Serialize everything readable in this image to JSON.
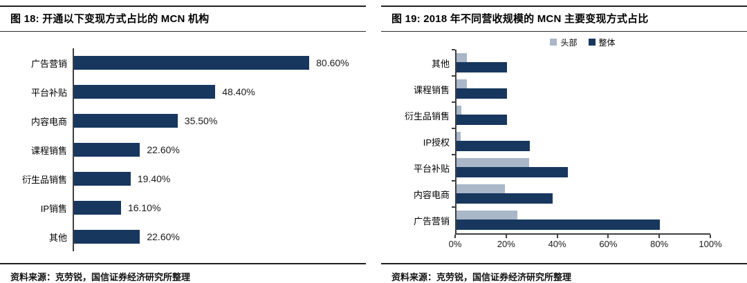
{
  "figure18": {
    "title": "图 18: 开通以下变现方式占比的 MCN 机构",
    "source": "资料来源：克劳锐，国信证券经济研究所整理"
  },
  "figure19": {
    "title": "图 19: 2018 年不同营收规模的 MCN 主要变现方式占比",
    "source": "资料来源：克劳锐，国信证券经济研究所整理"
  },
  "chart_data": [
    {
      "type": "bar",
      "orientation": "horizontal",
      "title": "图 18: 开通以下变现方式占比的 MCN 机构",
      "categories": [
        "广告营销",
        "平台补贴",
        "内容电商",
        "课程销售",
        "衍生品销售",
        "IP销售",
        "其他"
      ],
      "values": [
        80.6,
        48.4,
        35.5,
        22.6,
        19.4,
        16.1,
        22.6
      ],
      "value_labels": [
        "80.60%",
        "48.40%",
        "35.50%",
        "22.60%",
        "19.40%",
        "16.10%",
        "22.60%"
      ],
      "xlim": [
        0,
        100
      ],
      "grid": false,
      "bar_color": "#17375e",
      "axis_color": "#3f3f3f"
    },
    {
      "type": "bar",
      "orientation": "horizontal",
      "title": "图 19: 2018 年不同营收规模的 MCN 主要变现方式占比",
      "categories": [
        "其他",
        "课程销售",
        "衍生品销售",
        "IP授权",
        "平台补贴",
        "内容电商",
        "广告营销"
      ],
      "series": [
        {
          "name": "头部",
          "color": "#a9b7c9",
          "values": [
            4,
            4,
            2,
            1.5,
            28.5,
            19,
            24
          ]
        },
        {
          "name": "整体",
          "color": "#17375e",
          "values": [
            20,
            20,
            20,
            29,
            44,
            38,
            80
          ]
        }
      ],
      "x_ticks": [
        {
          "label": "0%",
          "value": 0
        },
        {
          "label": "20%",
          "value": 20
        },
        {
          "label": "40%",
          "value": 40
        },
        {
          "label": "60%",
          "value": 60
        },
        {
          "label": "80%",
          "value": 80
        },
        {
          "label": "100%",
          "value": 100
        }
      ],
      "xlim": [
        0,
        100
      ],
      "grid": false,
      "legend_position": "top",
      "axis_color": "#3f3f3f"
    }
  ]
}
